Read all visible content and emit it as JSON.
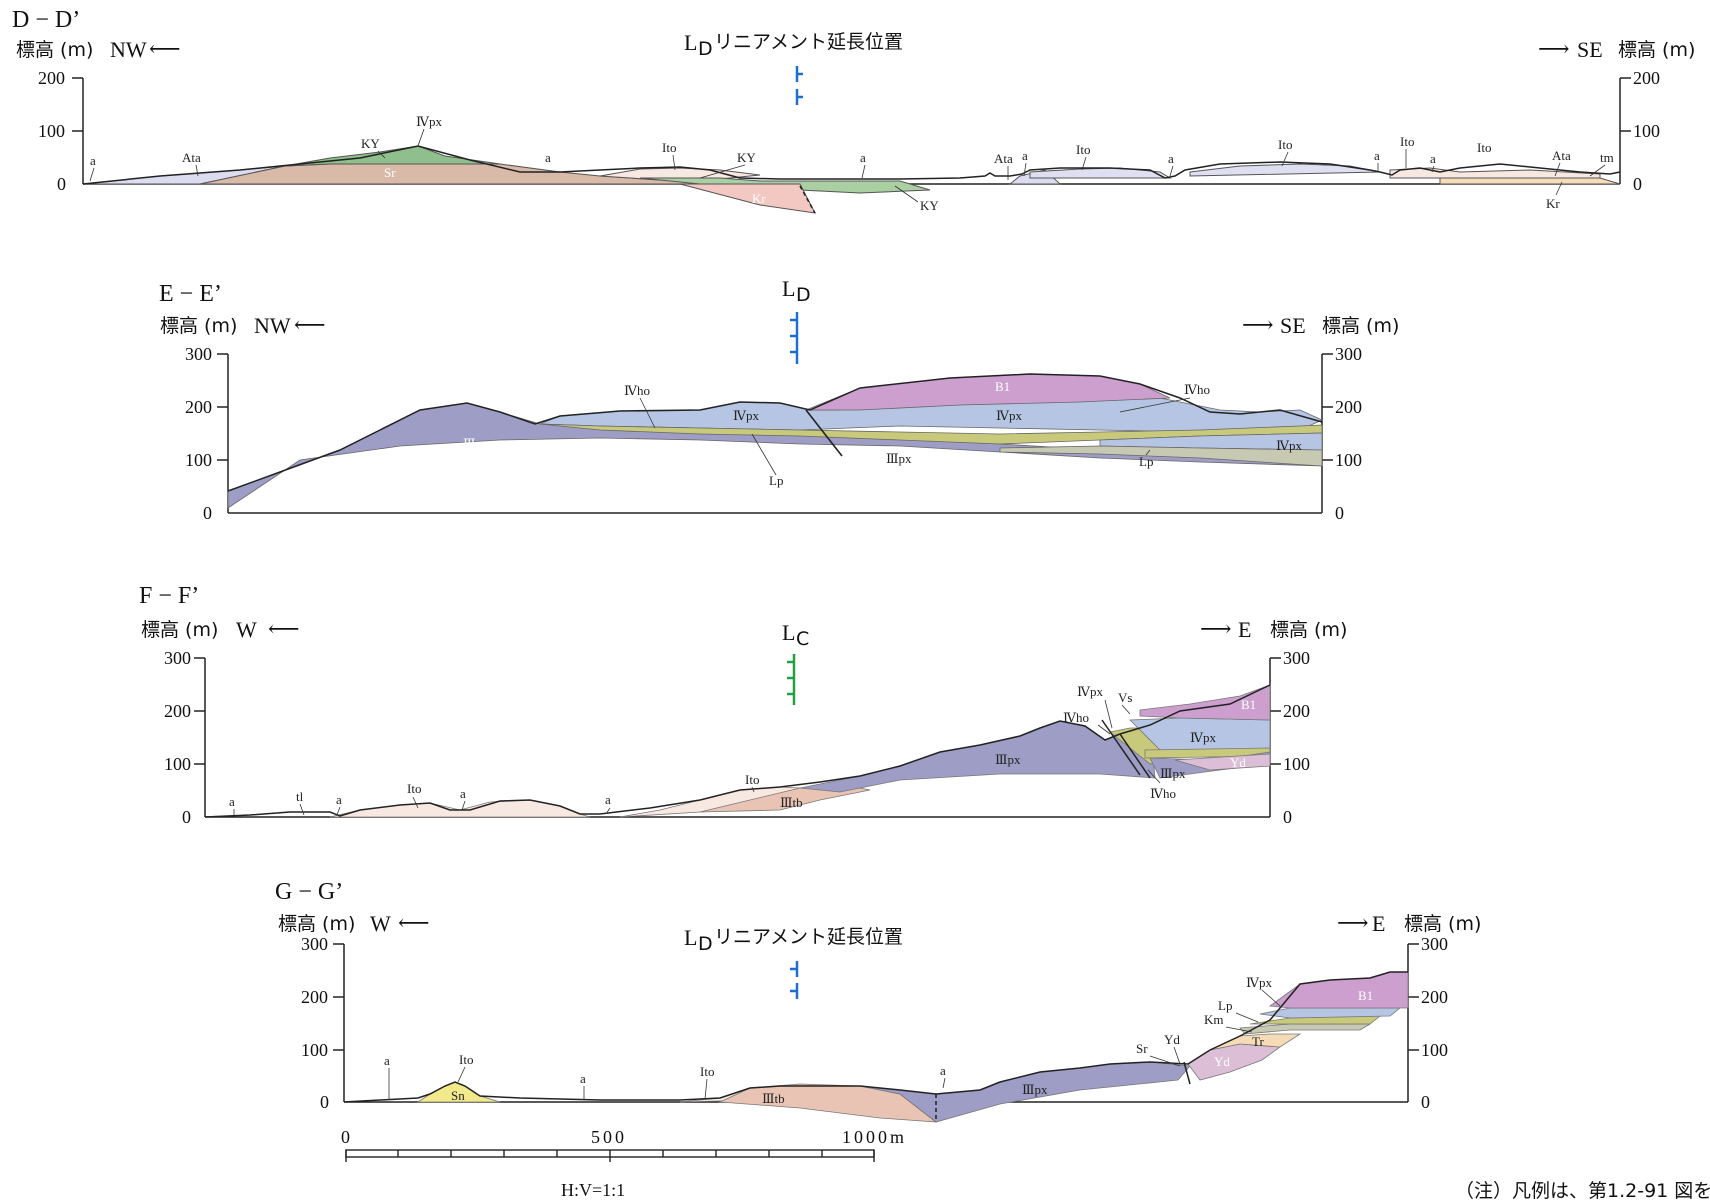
{
  "sections": {
    "d": {
      "title": "D − D’",
      "left_axis": "標高 (m)",
      "left_dir": "NW",
      "right_dir": "SE",
      "right_axis": "標高 (m)",
      "ticks": [
        "200",
        "100",
        "0"
      ],
      "lineament": "L",
      "lineament_sub": "D",
      "lineament_text": "リニアメント延長位置",
      "units": [
        "a",
        "Ata",
        "KY",
        "Ⅳpx",
        "Sr",
        "a",
        "Ito",
        "KY",
        "Kr",
        "Kr",
        "a",
        "KY",
        "Ata",
        "a",
        "Ito",
        "a",
        "Ito",
        "Ito",
        "a",
        "a",
        "Ito",
        "Ata",
        "tm",
        "Kr"
      ]
    },
    "e": {
      "title": "E − E’",
      "left_axis": "標高 (m)",
      "left_dir": "NW",
      "right_dir": "SE",
      "right_axis": "標高 (m)",
      "ticks": [
        "300",
        "200",
        "100",
        "0"
      ],
      "lineament": "L",
      "lineament_sub": "D",
      "units": [
        "Ⅳho",
        "Ⅳpx",
        "B1",
        "Ⅳho",
        "Ⅳpx",
        "Ⅲpx",
        "Ⅲpx",
        "Lp",
        "Lp",
        "Ⅳpx"
      ]
    },
    "f": {
      "title": "F − F’",
      "left_axis": "標高 (m)",
      "left_dir": "W",
      "right_dir": "E",
      "right_axis": "標高 (m)",
      "ticks": [
        "300",
        "200",
        "100",
        "0"
      ],
      "lineament": "L",
      "lineament_sub": "C",
      "units": [
        "a",
        "tl",
        "a",
        "Ito",
        "a",
        "a",
        "Ito",
        "Ⅲtb",
        "Ⅲpx",
        "Ⅳpx",
        "Vs",
        "Ⅳho",
        "B1",
        "Ⅳpx",
        "Yd",
        "Ⅲpx",
        "Ⅳho"
      ]
    },
    "g": {
      "title": "G − G’",
      "left_axis": "標高 (m)",
      "left_dir": "W",
      "right_dir": "E",
      "right_axis": "標高 (m)",
      "ticks": [
        "300",
        "200",
        "100",
        "0"
      ],
      "lineament": "L",
      "lineament_sub": "D",
      "lineament_text": "リニアメント延長位置",
      "units": [
        "a",
        "Ito",
        "Sn",
        "a",
        "Ito",
        "Ⅲtb",
        "a",
        "Ⅲpx",
        "Sr",
        "Yd",
        "Yd",
        "Tr",
        "Km",
        "Lp",
        "Ⅳpx",
        "B1"
      ]
    }
  },
  "scale": {
    "labels": [
      "0",
      "500",
      "1000m"
    ],
    "ratio": "H:V=1:1"
  },
  "note": "（注）凡例は、第1.2-91 図を",
  "colors": {
    "IIIpx": "#9d9dc6",
    "IVpx": "#b5c5e3",
    "IVho": "#c8c97a",
    "B1": "#cc9fcf",
    "Lp": "#c7c9b2",
    "KY": "#8fbf8c",
    "Sr": "#d9b9a8",
    "Kr": "#f4c8c2",
    "Ata": "#dcdcf0",
    "Ito": "#f8e8e2",
    "Sn": "#f2ea8a",
    "Tr": "#f6dcb6",
    "Yd": "#dcbfd6",
    "IIItb": "#e9c4b4",
    "lineament_D": "#1a6fd0",
    "lineament_C": "#22a042"
  }
}
